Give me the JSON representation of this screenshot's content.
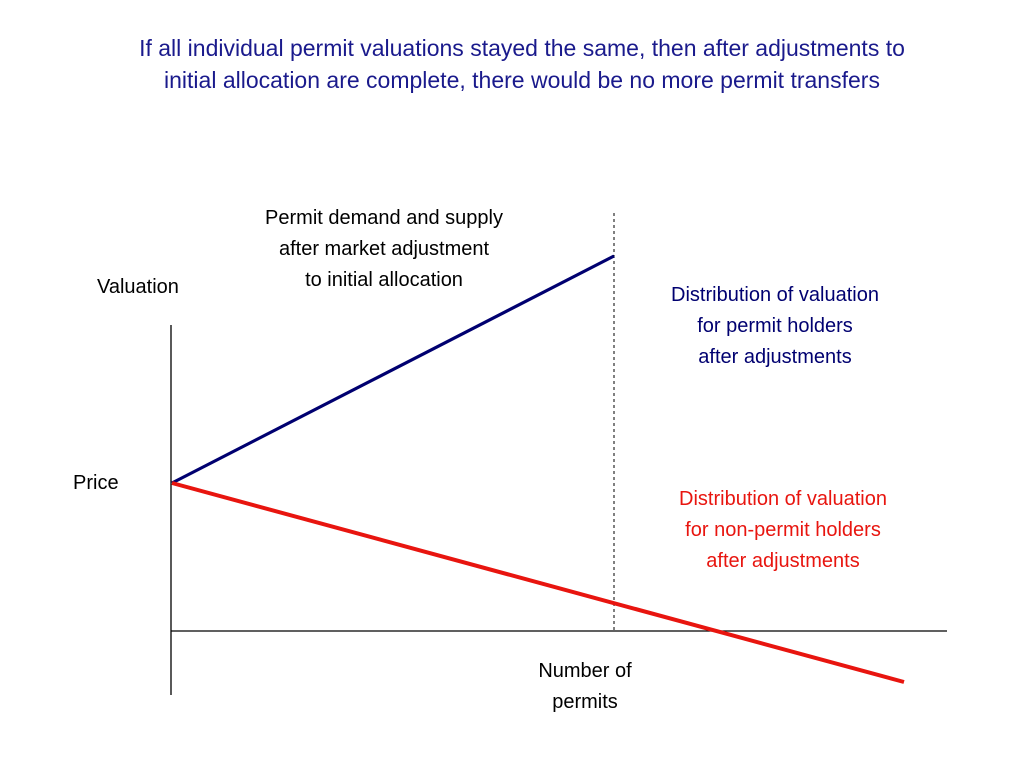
{
  "title": {
    "lines": [
      "If all individual permit valuations stayed the same, then after adjustments to",
      "initial allocation are complete, there would be no more permit transfers"
    ],
    "color": "#1a1a8c"
  },
  "labels": {
    "demand_supply": [
      "Permit demand and supply",
      "after market adjustment",
      "to initial allocation"
    ],
    "valuation_axis": "Valuation",
    "price": "Price",
    "number_of_permits": [
      "Number of",
      "permits"
    ],
    "permit_holders": [
      "Distribution of valuation",
      "for permit holders",
      "after adjustments"
    ],
    "non_permit_holders": [
      "Distribution of valuation",
      "for non-permit holders",
      "after adjustments"
    ]
  },
  "colors": {
    "permit_holders_line": "#000070",
    "non_permit_holders_line": "#e8150f",
    "permit_holders_text": "#000070",
    "non_permit_holders_text": "#e8150f",
    "axis": "#000000"
  }
}
